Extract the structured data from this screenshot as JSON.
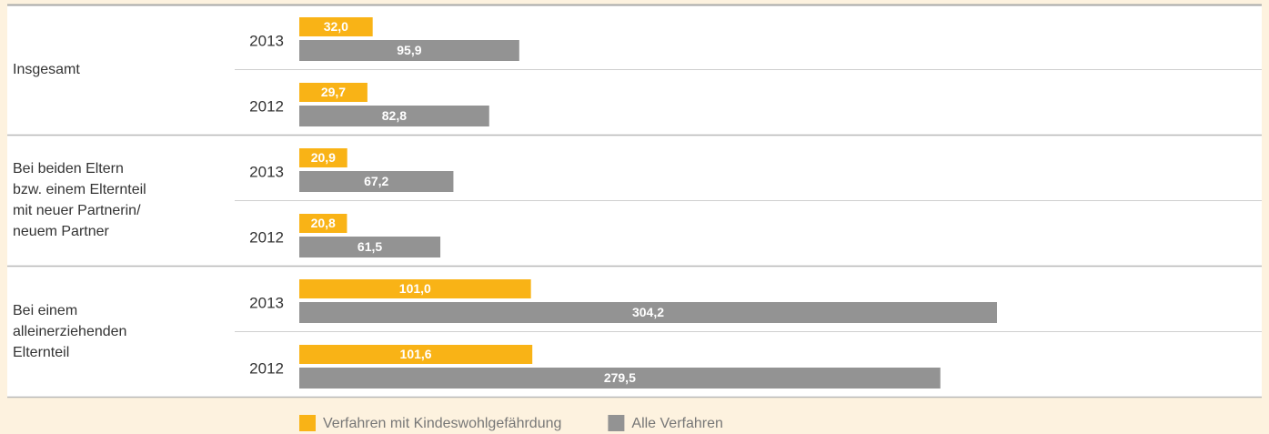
{
  "chart_data": {
    "type": "bar",
    "orientation": "horizontal",
    "groups": [
      {
        "name": "Insgesamt",
        "categories": [
          "2013",
          "2012"
        ]
      },
      {
        "name": "Bei beiden Eltern\nbzw. einem Elternteil\nmit neuer Partnerin/\nneuem Partner",
        "categories": [
          "2013",
          "2012"
        ]
      },
      {
        "name": "Bei einem\nalleinerziehenden\nElternteil",
        "categories": [
          "2013",
          "2012"
        ]
      }
    ],
    "series": [
      {
        "name": "Verfahren mit Kindeswohlgefährdung",
        "color": "#f9b316",
        "values": [
          32.0,
          29.7,
          20.9,
          20.8,
          101.0,
          101.6
        ],
        "value_labels": [
          "32,0",
          "29,7",
          "20,9",
          "20,8",
          "101,0",
          "101,6"
        ]
      },
      {
        "name": "Alle Verfahren",
        "color": "#939393",
        "values": [
          95.9,
          82.8,
          67.2,
          61.5,
          304.2,
          279.5
        ],
        "value_labels": [
          "95,9",
          "82,8",
          "67,2",
          "61,5",
          "304,2",
          "279,5"
        ]
      }
    ]
  }
}
